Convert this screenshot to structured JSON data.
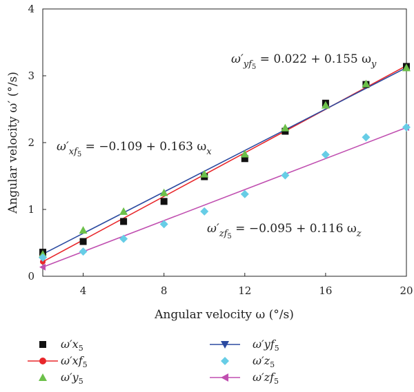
{
  "chart_data": {
    "type": "scatter",
    "xlabel": "Angular velocity ω (°/s)",
    "ylabel": "Angular velocity ω′ (°/s)",
    "xlim": [
      2,
      20
    ],
    "ylim": [
      0,
      4
    ],
    "x_ticks": [
      "4",
      "8",
      "12",
      "16",
      "20"
    ],
    "y_ticks": [
      "0",
      "1",
      "2",
      "3",
      "4"
    ],
    "colors": {
      "x": "#111111",
      "y_fit": "#2b4aa0",
      "x_fit": "#e8262a",
      "y": "#6cc04a",
      "z": "#67cde6",
      "z_fit": "#c04fb0"
    },
    "series": [
      {
        "name": "ω′x5",
        "kind": "scatter",
        "marker": "square",
        "color": "#111111",
        "x": [
          2,
          4,
          6,
          8,
          10,
          12,
          14,
          16,
          18,
          20
        ],
        "y": [
          0.36,
          0.52,
          0.82,
          1.12,
          1.49,
          1.76,
          2.17,
          2.59,
          2.87,
          3.14
        ]
      },
      {
        "name": "ω′xf5",
        "kind": "line",
        "marker": "circle",
        "color": "#e8262a",
        "x": [
          2,
          20
        ],
        "y": [
          0.217,
          3.151
        ]
      },
      {
        "name": "ω′y5",
        "kind": "scatter",
        "marker": "triangle-up",
        "color": "#6cc04a",
        "x": [
          2,
          4,
          6,
          8,
          10,
          12,
          14,
          16,
          18,
          20
        ],
        "y": [
          0.33,
          0.69,
          0.97,
          1.25,
          1.53,
          1.83,
          2.22,
          2.56,
          2.88,
          3.12
        ]
      },
      {
        "name": "ω′yf5",
        "kind": "line",
        "marker": "triangle-down",
        "color": "#2b4aa0",
        "x": [
          2,
          20
        ],
        "y": [
          0.332,
          3.122
        ]
      },
      {
        "name": "ω′z5",
        "kind": "scatter",
        "marker": "diamond",
        "color": "#67cde6",
        "x": [
          2,
          4,
          6,
          8,
          10,
          12,
          14,
          16,
          18,
          20
        ],
        "y": [
          0.28,
          0.37,
          0.56,
          0.78,
          0.97,
          1.23,
          1.51,
          1.82,
          2.08,
          2.23
        ]
      },
      {
        "name": "ω′zf5",
        "kind": "line",
        "marker": "triangle-left",
        "color": "#c04fb0",
        "x": [
          2,
          20
        ],
        "y": [
          0.137,
          2.225
        ]
      }
    ],
    "annotations": {
      "eq_y": {
        "lhs": "ω′",
        "sub": "yf",
        "subsub": "5",
        "rhs": " = 0.022 + 0.155 ω",
        "rsub": "y"
      },
      "eq_x": {
        "lhs": "ω′",
        "sub": "xf",
        "subsub": "5",
        "rhs": " = −0.109 + 0.163 ω",
        "rsub": "x"
      },
      "eq_z": {
        "lhs": "ω′",
        "sub": "zf",
        "subsub": "5",
        "rhs": " = −0.095 + 0.116 ω",
        "rsub": "z"
      }
    },
    "grid": false,
    "legend_position": "bottom"
  }
}
